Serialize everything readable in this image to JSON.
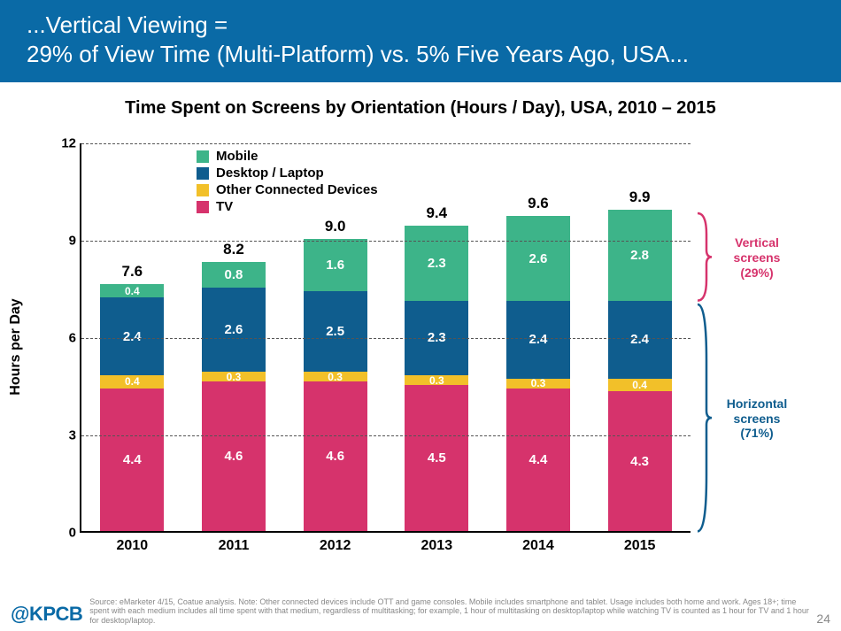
{
  "header": {
    "line1": "...Vertical Viewing =",
    "line2": "29% of View Time (Multi-Platform) vs. 5% Five Years Ago, USA...",
    "bg": "#0a6aa6",
    "fg": "#ffffff"
  },
  "chart": {
    "title": "Time Spent on Screens by Orientation (Hours / Day), USA, 2010 – 2015",
    "ylabel": "Hours per Day",
    "ymax": 12,
    "ytick_step": 3,
    "categories": [
      "2010",
      "2011",
      "2012",
      "2013",
      "2014",
      "2015"
    ],
    "series": [
      {
        "name": "Mobile",
        "color": "#3db489"
      },
      {
        "name": "Desktop / Laptop",
        "color": "#0f5d8e"
      },
      {
        "name": "Other Connected Devices",
        "color": "#f2c029"
      },
      {
        "name": "TV",
        "color": "#d6336c"
      }
    ],
    "stacks": [
      {
        "total": "7.6",
        "tv": 4.4,
        "other": 0.4,
        "desktop": 2.4,
        "mobile": 0.4
      },
      {
        "total": "8.2",
        "tv": 4.6,
        "other": 0.3,
        "desktop": 2.6,
        "mobile": 0.8
      },
      {
        "total": "9.0",
        "tv": 4.6,
        "other": 0.3,
        "desktop": 2.5,
        "mobile": 1.6
      },
      {
        "total": "9.4",
        "tv": 4.5,
        "other": 0.3,
        "desktop": 2.3,
        "mobile": 2.3
      },
      {
        "total": "9.6",
        "tv": 4.4,
        "other": 0.3,
        "desktop": 2.4,
        "mobile": 2.6
      },
      {
        "total": "9.9",
        "tv": 4.3,
        "other": 0.4,
        "desktop": 2.4,
        "mobile": 2.8
      }
    ],
    "grid_color": "#666666",
    "annotations": {
      "vertical": {
        "label1": "Vertical",
        "label2": "screens",
        "label3": "(29%)",
        "color": "#d6336c"
      },
      "horizontal": {
        "label1": "Horizontal",
        "label2": "screens",
        "label3": "(71%)",
        "color": "#0f5d8e"
      }
    }
  },
  "footer": {
    "brand": "@KPCB",
    "source": "Source: eMarketer 4/15, Coatue analysis. Note: Other connected devices include OTT and game consoles. Mobile includes smartphone and tablet. Usage includes both home and work. Ages 18+; time spent with each medium includes all time spent with that medium, regardless of multitasking; for example, 1 hour of multitasking on desktop/laptop while watching TV is counted as 1 hour for TV and 1 hour for desktop/laptop.",
    "page": "24"
  }
}
